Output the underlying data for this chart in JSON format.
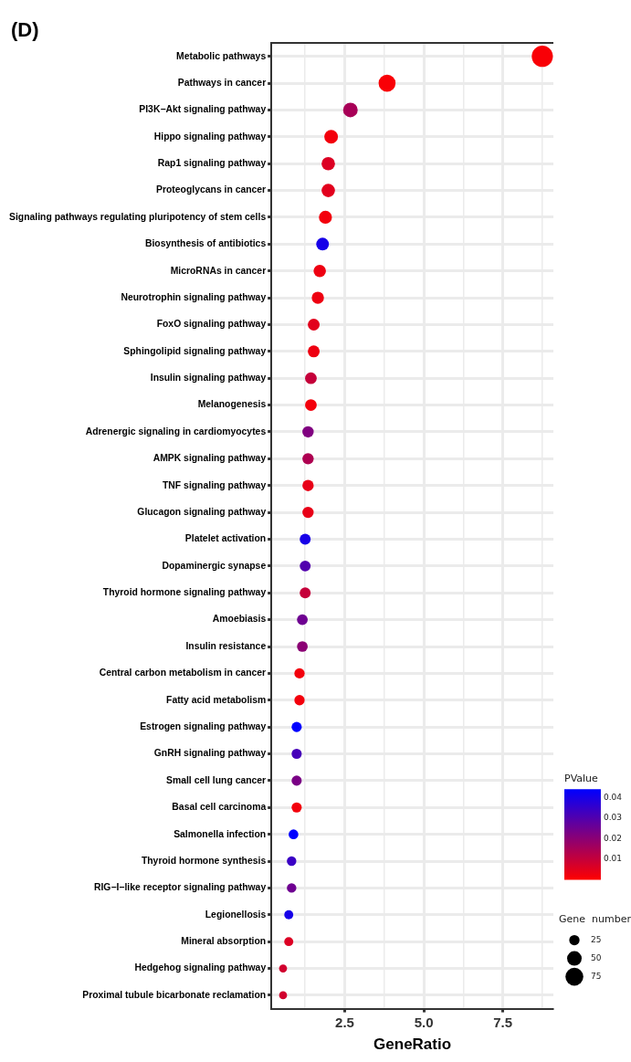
{
  "chart_data": {
    "type": "bubble",
    "title": "(D)",
    "orientation": "horizontal",
    "xlabel": "GeneRatio",
    "clabel": "PValue",
    "legend_title": "Gene  number",
    "categories": [
      "Metabolic pathways",
      "Pathways in cancer",
      "PI3K−Akt signaling pathway",
      "Hippo signaling pathway",
      "Rap1 signaling pathway",
      "Proteoglycans in cancer",
      "Signaling pathways regulating pluripotency of stem cells",
      "Biosynthesis of antibiotics",
      "MicroRNAs in cancer",
      "Neurotrophin signaling pathway",
      "FoxO signaling pathway",
      "Sphingolipid signaling pathway",
      "Insulin signaling pathway",
      "Melanogenesis",
      "Adrenergic signaling in cardiomyocytes",
      "AMPK signaling pathway",
      "TNF signaling pathway",
      "Glucagon signaling pathway",
      "Platelet activation",
      "Dopaminergic synapse",
      "Thyroid hormone signaling pathway",
      "Amoebiasis",
      "Insulin resistance",
      "Central carbon metabolism in cancer",
      "Fatty acid metabolism",
      "Estrogen signaling pathway",
      "GnRH signaling pathway",
      "Small cell lung cancer",
      "Basal cell carcinoma",
      "Salmonella infection",
      "Thyroid hormone synthesis",
      "RIG−I−like receptor signaling pathway",
      "Legionellosis",
      "Mineral absorption",
      "Hedgehog signaling pathway",
      "Proximal tubule bicarbonate reclamation"
    ],
    "values": [
      8.75,
      3.84,
      2.68,
      2.07,
      1.98,
      1.98,
      1.89,
      1.8,
      1.71,
      1.65,
      1.52,
      1.52,
      1.43,
      1.43,
      1.34,
      1.34,
      1.34,
      1.34,
      1.25,
      1.25,
      1.25,
      1.16,
      1.16,
      1.07,
      1.07,
      0.98,
      0.98,
      0.98,
      0.98,
      0.88,
      0.82,
      0.82,
      0.73,
      0.73,
      0.55,
      0.55
    ],
    "sizes": [
      105,
      68,
      50,
      44,
      42,
      42,
      40,
      38,
      36,
      35,
      33,
      33,
      32,
      32,
      30,
      30,
      30,
      30,
      28,
      28,
      28,
      27,
      27,
      25,
      25,
      24,
      24,
      24,
      24,
      22,
      21,
      21,
      19,
      19,
      15,
      15
    ],
    "cvalues": [
      0.001,
      0.001,
      0.015,
      0.002,
      0.006,
      0.005,
      0.002,
      0.04,
      0.003,
      0.003,
      0.005,
      0.003,
      0.01,
      0.002,
      0.022,
      0.014,
      0.004,
      0.004,
      0.04,
      0.03,
      0.01,
      0.025,
      0.02,
      0.002,
      0.002,
      0.044,
      0.032,
      0.023,
      0.002,
      0.044,
      0.034,
      0.025,
      0.04,
      0.006,
      0.008,
      0.008
    ],
    "size_legend": [
      25,
      50,
      75
    ],
    "clim": [
      0,
      0.044
    ],
    "cticks": [
      0.01,
      0.02,
      0.03,
      0.04
    ],
    "xlim": [
      0.18,
      9.1
    ],
    "xticks": [
      {
        "value": 1.25,
        "label": null
      },
      2.5,
      {
        "value": 3.75,
        "label": null
      },
      {
        "value": 5,
        "label": "5.0"
      },
      {
        "value": 6.25,
        "label": null
      },
      7.5,
      {
        "value": 8.75,
        "label": null
      }
    ],
    "grid": true
  }
}
